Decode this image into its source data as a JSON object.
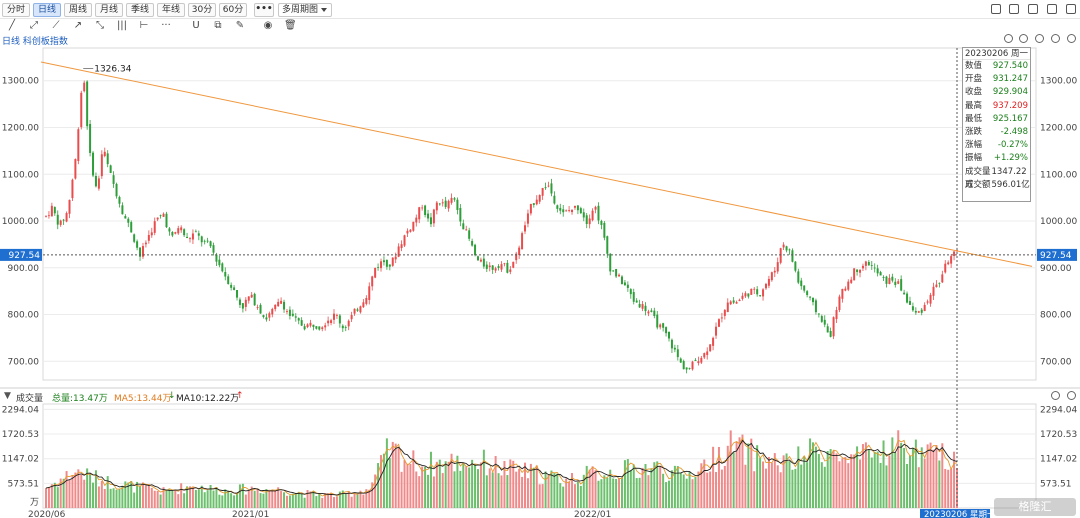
{
  "toolbar": {
    "timeframes": [
      "分时",
      "日线",
      "周线",
      "月线",
      "季线",
      "年线",
      "30分",
      "60分"
    ],
    "active_timeframe": "日线",
    "more_label": "•••",
    "multi_period_label": "多周期图"
  },
  "subheader": {
    "title": "日线 科创板指数"
  },
  "info_box": {
    "date": "20230206",
    "weekday": "周一",
    "rows": [
      {
        "k": "数值",
        "v": "927.540",
        "color": "#1a7f1a"
      },
      {
        "k": "开盘",
        "v": "931.247",
        "color": "#1a7f1a"
      },
      {
        "k": "收盘",
        "v": "929.904",
        "color": "#1a7f1a"
      },
      {
        "k": "最高",
        "v": "937.209",
        "color": "#e02020"
      },
      {
        "k": "最低",
        "v": "925.167",
        "color": "#1a7f1a"
      },
      {
        "k": "涨跌",
        "v": "-2.498",
        "color": "#1a7f1a"
      },
      {
        "k": "涨幅",
        "v": "-0.27%",
        "color": "#1a7f1a"
      },
      {
        "k": "振幅",
        "v": "+1.29%",
        "color": "#1a7f1a"
      },
      {
        "k": "成交量",
        "v": "1347.22万",
        "color": "#333333"
      },
      {
        "k": "成交额",
        "v": "596.01亿",
        "color": "#333333"
      }
    ]
  },
  "volume_header": {
    "title": "成交量",
    "total_label": "总量:13.47万",
    "ma5_label": "MA5:13.44万",
    "ma10_label": "MA10:12.22万"
  },
  "watermark": "格隆汇",
  "chart_data": {
    "type": "candlestick",
    "price_axis": {
      "ticks": [
        "1300.00",
        "1200.00",
        "1100.00",
        "1000.00",
        "900.00",
        "800.00",
        "700.00"
      ],
      "range": [
        660,
        1370
      ]
    },
    "volume_axis": {
      "ticks": [
        "2294.04",
        "1720.53",
        "1147.02",
        "573.51"
      ],
      "unit": "万",
      "range": [
        0,
        2420
      ]
    },
    "x_labels": [
      "2020/06",
      "2021/01",
      "2022/01",
      "20230206 星期一"
    ],
    "crosshair": {
      "price_label": "927.54",
      "date": "20230206",
      "weekday": "星期一"
    },
    "high_annotation": "1326.34",
    "trendline": {
      "from": [
        "2020/06",
        1340
      ],
      "to": [
        "2023/03",
        903
      ]
    },
    "price_path": [
      [
        0,
        1010
      ],
      [
        6,
        1028
      ],
      [
        14,
        990
      ],
      [
        22,
        1020
      ],
      [
        30,
        1130
      ],
      [
        38,
        1326
      ],
      [
        44,
        1150
      ],
      [
        52,
        1060
      ],
      [
        58,
        1160
      ],
      [
        64,
        1110
      ],
      [
        72,
        1060
      ],
      [
        80,
        1010
      ],
      [
        88,
        975
      ],
      [
        96,
        925
      ],
      [
        104,
        965
      ],
      [
        112,
        1000
      ],
      [
        120,
        1015
      ],
      [
        128,
        960
      ],
      [
        136,
        990
      ],
      [
        144,
        960
      ],
      [
        152,
        975
      ],
      [
        160,
        955
      ],
      [
        168,
        945
      ],
      [
        176,
        910
      ],
      [
        184,
        880
      ],
      [
        192,
        850
      ],
      [
        200,
        815
      ],
      [
        208,
        840
      ],
      [
        216,
        820
      ],
      [
        224,
        790
      ],
      [
        232,
        810
      ],
      [
        240,
        830
      ],
      [
        248,
        800
      ],
      [
        256,
        785
      ],
      [
        264,
        775
      ],
      [
        272,
        780
      ],
      [
        280,
        775
      ],
      [
        288,
        790
      ],
      [
        296,
        800
      ],
      [
        304,
        770
      ],
      [
        312,
        795
      ],
      [
        320,
        820
      ],
      [
        328,
        845
      ],
      [
        336,
        900
      ],
      [
        344,
        915
      ],
      [
        352,
        905
      ],
      [
        360,
        945
      ],
      [
        368,
        975
      ],
      [
        376,
        1000
      ],
      [
        384,
        1035
      ],
      [
        392,
        990
      ],
      [
        400,
        1045
      ],
      [
        408,
        1030
      ],
      [
        416,
        1050
      ],
      [
        424,
        1000
      ],
      [
        432,
        960
      ],
      [
        440,
        915
      ],
      [
        448,
        905
      ],
      [
        456,
        900
      ],
      [
        464,
        910
      ],
      [
        472,
        895
      ],
      [
        480,
        925
      ],
      [
        488,
        985
      ],
      [
        496,
        1035
      ],
      [
        504,
        1060
      ],
      [
        512,
        1080
      ],
      [
        520,
        1040
      ],
      [
        528,
        1015
      ],
      [
        536,
        1025
      ],
      [
        544,
        1030
      ],
      [
        552,
        1000
      ],
      [
        560,
        1035
      ],
      [
        568,
        980
      ],
      [
        576,
        900
      ],
      [
        584,
        880
      ],
      [
        592,
        860
      ],
      [
        600,
        830
      ],
      [
        608,
        820
      ],
      [
        616,
        805
      ],
      [
        624,
        780
      ],
      [
        632,
        760
      ],
      [
        640,
        730
      ],
      [
        648,
        695
      ],
      [
        656,
        680
      ],
      [
        664,
        705
      ],
      [
        672,
        715
      ],
      [
        680,
        750
      ],
      [
        688,
        790
      ],
      [
        696,
        830
      ],
      [
        704,
        825
      ],
      [
        712,
        840
      ],
      [
        720,
        850
      ],
      [
        728,
        845
      ],
      [
        736,
        870
      ],
      [
        744,
        895
      ],
      [
        752,
        955
      ],
      [
        760,
        930
      ],
      [
        768,
        870
      ],
      [
        776,
        845
      ],
      [
        784,
        815
      ],
      [
        792,
        790
      ],
      [
        800,
        750
      ],
      [
        808,
        825
      ],
      [
        816,
        860
      ],
      [
        824,
        890
      ],
      [
        832,
        905
      ],
      [
        840,
        910
      ],
      [
        848,
        890
      ],
      [
        856,
        870
      ],
      [
        864,
        875
      ],
      [
        872,
        860
      ],
      [
        880,
        825
      ],
      [
        888,
        800
      ],
      [
        896,
        815
      ],
      [
        904,
        850
      ],
      [
        912,
        870
      ],
      [
        920,
        915
      ],
      [
        928,
        930
      ]
    ],
    "volume_path": [
      [
        0,
        480
      ],
      [
        30,
        850
      ],
      [
        60,
        620
      ],
      [
        90,
        500
      ],
      [
        120,
        380
      ],
      [
        150,
        520
      ],
      [
        180,
        400
      ],
      [
        210,
        450
      ],
      [
        240,
        420
      ],
      [
        270,
        320
      ],
      [
        300,
        300
      ],
      [
        330,
        450
      ],
      [
        350,
        1350
      ],
      [
        380,
        1000
      ],
      [
        410,
        1050
      ],
      [
        440,
        1100
      ],
      [
        470,
        900
      ],
      [
        500,
        800
      ],
      [
        530,
        650
      ],
      [
        560,
        800
      ],
      [
        590,
        880
      ],
      [
        620,
        950
      ],
      [
        650,
        720
      ],
      [
        680,
        1100
      ],
      [
        700,
        1450
      ],
      [
        730,
        1150
      ],
      [
        760,
        1000
      ],
      [
        790,
        1400
      ],
      [
        820,
        1050
      ],
      [
        850,
        1300
      ],
      [
        870,
        1450
      ],
      [
        900,
        1200
      ],
      [
        930,
        1200
      ]
    ]
  }
}
